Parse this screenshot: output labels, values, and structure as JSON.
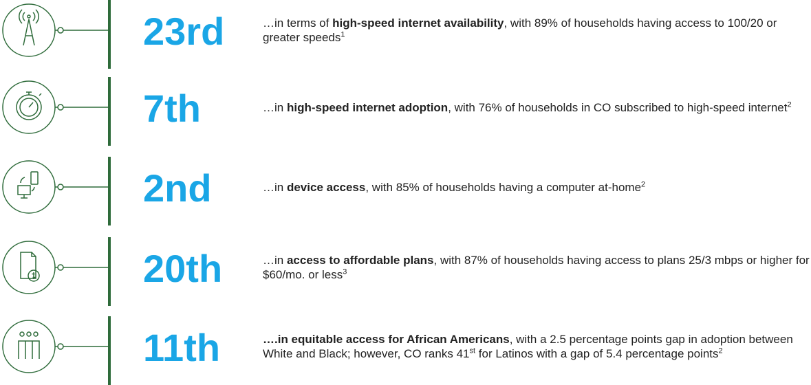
{
  "rows": [
    {
      "rank": "23rd",
      "segments": [
        {
          "text": "…in terms of "
        },
        {
          "text": "high-speed internet availability",
          "bold": true
        },
        {
          "text": ", with 89% of households having access to 100/20 or greater speeds"
        },
        {
          "text": "1",
          "sup": true
        }
      ]
    },
    {
      "rank": "7th",
      "segments": [
        {
          "text": "…in "
        },
        {
          "text": "high-speed internet adoption",
          "bold": true
        },
        {
          "text": ", with 76% of households in CO subscribed to high-speed internet"
        },
        {
          "text": "2",
          "sup": true
        }
      ]
    },
    {
      "rank": "2nd",
      "segments": [
        {
          "text": "…in "
        },
        {
          "text": "device access",
          "bold": true
        },
        {
          "text": ", with 85% of households having a computer at-home"
        },
        {
          "text": "2",
          "sup": true
        }
      ]
    },
    {
      "rank": "20th",
      "segments": [
        {
          "text": "…in "
        },
        {
          "text": "access to affordable plans",
          "bold": true
        },
        {
          "text": ", with 87% of households having access to plans 25/3 mbps or higher for $60/mo. or less"
        },
        {
          "text": "3",
          "sup": true
        }
      ]
    },
    {
      "rank": "11th",
      "segments": [
        {
          "text": "….in equitable access for African Americans",
          "bold": true
        },
        {
          "text": ", with a 2.5 percentage points gap in adoption between White and Black; however, CO ranks 41"
        },
        {
          "text": "st",
          "sup": true
        },
        {
          "text": " for Latinos with a gap of 5.4 percentage points"
        },
        {
          "text": "2",
          "sup": true
        }
      ]
    }
  ]
}
